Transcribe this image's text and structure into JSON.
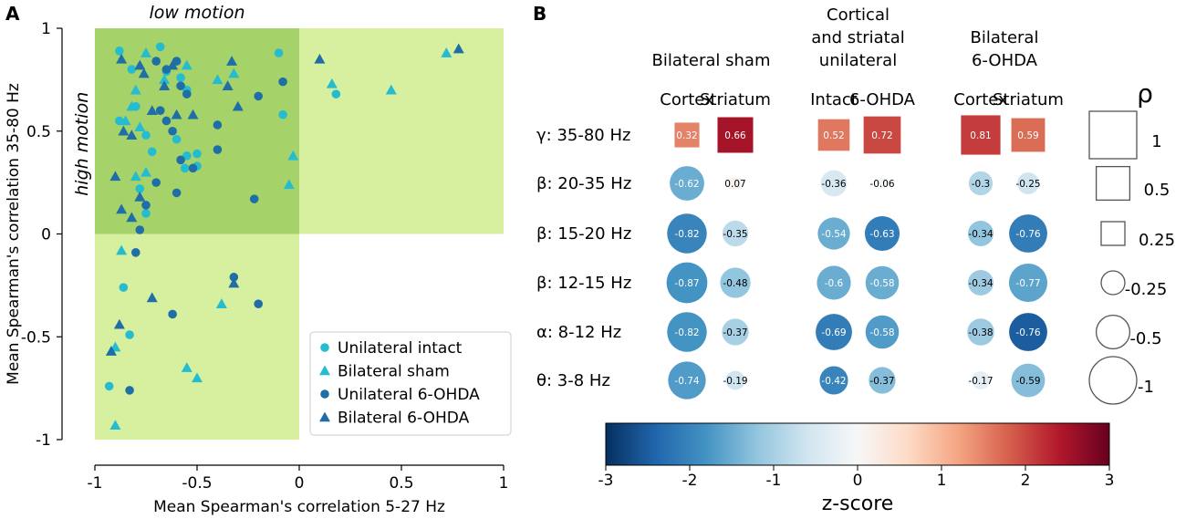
{
  "panel_a": {
    "letter": "A"
  },
  "panel_b": {
    "letter": "B"
  },
  "chart_data": [
    {
      "type": "scatter",
      "panel": "A",
      "xlabel": "Mean Spearman's correlation 5-27 Hz",
      "ylabel": "Mean Spearman's correlation 35-80 Hz",
      "xlim": [
        -1,
        1
      ],
      "ylim": [
        -1,
        1
      ],
      "xticks": [
        -1,
        -0.5,
        0,
        0.5,
        1
      ],
      "xtick_labels": [
        "-1",
        "-0.5",
        "0",
        "0.5",
        "1"
      ],
      "yticks": [
        -1,
        -0.5,
        0,
        0.5,
        1
      ],
      "ytick_labels": [
        "-1",
        "-0.5",
        "0",
        "0.5",
        "1"
      ],
      "annotations": {
        "top": "low motion",
        "left": "high motion"
      },
      "region_colors": {
        "light": "#d6f0a0",
        "dark": "#a6d26a"
      },
      "legend_position": "lower-right",
      "series": [
        {
          "name": "Unilateral intact",
          "marker": "circle",
          "color": "#26bcd0",
          "points": [
            [
              -0.88,
              0.89
            ],
            [
              -0.82,
              0.8
            ],
            [
              -0.68,
              0.91
            ],
            [
              -0.58,
              0.76
            ],
            [
              -0.55,
              0.7
            ],
            [
              -0.88,
              0.55
            ],
            [
              -0.8,
              0.62
            ],
            [
              -0.75,
              0.48
            ],
            [
              -0.72,
              0.4
            ],
            [
              -0.6,
              0.46
            ],
            [
              -0.55,
              0.38
            ],
            [
              -0.5,
              0.33
            ],
            [
              -0.78,
              0.22
            ],
            [
              -0.75,
              0.1
            ],
            [
              -0.1,
              0.88
            ],
            [
              -0.08,
              0.58
            ],
            [
              0.18,
              0.68
            ],
            [
              -0.5,
              0.39
            ],
            [
              -0.86,
              -0.26
            ],
            [
              -0.83,
              -0.49
            ],
            [
              -0.93,
              -0.74
            ],
            [
              -0.65,
              0.79
            ],
            [
              -0.56,
              0.32
            ]
          ]
        },
        {
          "name": "Bilateral sham",
          "marker": "triangle",
          "color": "#26bcd0",
          "points": [
            [
              -0.85,
              0.55
            ],
            [
              -0.8,
              0.7
            ],
            [
              -0.78,
              0.52
            ],
            [
              -0.75,
              0.88
            ],
            [
              -0.66,
              0.75
            ],
            [
              -0.55,
              0.82
            ],
            [
              -0.4,
              0.75
            ],
            [
              -0.32,
              0.78
            ],
            [
              -0.75,
              0.3
            ],
            [
              -0.8,
              0.28
            ],
            [
              -0.05,
              0.24
            ],
            [
              -0.03,
              0.38
            ],
            [
              0.16,
              0.73
            ],
            [
              0.45,
              0.7
            ],
            [
              0.72,
              0.88
            ],
            [
              -0.87,
              -0.08
            ],
            [
              -0.55,
              -0.65
            ],
            [
              -0.5,
              -0.7
            ],
            [
              -0.38,
              -0.34
            ],
            [
              -0.9,
              -0.93
            ],
            [
              -0.9,
              -0.55
            ],
            [
              -0.82,
              0.62
            ]
          ]
        },
        {
          "name": "Unilateral 6-OHDA",
          "marker": "circle",
          "color": "#1f6fa6",
          "points": [
            [
              -0.7,
              0.84
            ],
            [
              -0.65,
              0.8
            ],
            [
              -0.6,
              0.84
            ],
            [
              -0.58,
              0.72
            ],
            [
              -0.55,
              0.68
            ],
            [
              -0.65,
              0.55
            ],
            [
              -0.62,
              0.5
            ],
            [
              -0.58,
              0.36
            ],
            [
              -0.52,
              0.32
            ],
            [
              -0.68,
              0.6
            ],
            [
              -0.7,
              0.25
            ],
            [
              -0.75,
              0.14
            ],
            [
              -0.78,
              0.02
            ],
            [
              -0.6,
              0.2
            ],
            [
              -0.4,
              0.53
            ],
            [
              -0.4,
              0.41
            ],
            [
              -0.2,
              0.67
            ],
            [
              -0.08,
              0.74
            ],
            [
              -0.22,
              0.17
            ],
            [
              -0.32,
              -0.21
            ],
            [
              -0.2,
              -0.34
            ],
            [
              -0.62,
              -0.39
            ],
            [
              -0.83,
              -0.76
            ],
            [
              -0.8,
              -0.09
            ]
          ]
        },
        {
          "name": "Bilateral 6-OHDA",
          "marker": "triangle",
          "color": "#1f6fa6",
          "points": [
            [
              -0.87,
              0.85
            ],
            [
              -0.78,
              0.82
            ],
            [
              -0.76,
              0.78
            ],
            [
              -0.72,
              0.6
            ],
            [
              -0.66,
              0.72
            ],
            [
              -0.62,
              0.82
            ],
            [
              -0.6,
              0.58
            ],
            [
              -0.52,
              0.58
            ],
            [
              -0.82,
              0.48
            ],
            [
              -0.86,
              0.5
            ],
            [
              -0.87,
              0.12
            ],
            [
              -0.82,
              0.08
            ],
            [
              -0.9,
              0.28
            ],
            [
              -0.78,
              0.18
            ],
            [
              -0.35,
              0.72
            ],
            [
              -0.33,
              0.84
            ],
            [
              -0.3,
              0.62
            ],
            [
              0.1,
              0.85
            ],
            [
              0.78,
              0.9
            ],
            [
              -0.32,
              -0.24
            ],
            [
              -0.72,
              -0.31
            ],
            [
              -0.88,
              -0.44
            ],
            [
              -0.92,
              -0.57
            ]
          ]
        }
      ]
    },
    {
      "type": "heatmap",
      "panel": "B",
      "groups": [
        {
          "label_lines": [
            "Bilateral sham"
          ],
          "columns": [
            "Cortex",
            "Striatum"
          ]
        },
        {
          "label_lines": [
            "Cortical",
            "and striatal",
            "unilateral"
          ],
          "columns": [
            "Intact",
            "6-OHDA"
          ]
        },
        {
          "label_lines": [
            "Bilateral",
            "6-OHDA"
          ],
          "columns": [
            "Cortex",
            "Striatum"
          ]
        }
      ],
      "bands": [
        "γ: 35-80 Hz",
        "β: 20-35 Hz",
        "β: 15-20 Hz",
        "β: 12-15 Hz",
        "α: 8-12 Hz",
        "θ: 3-8 Hz"
      ],
      "rho_values": [
        [
          0.32,
          0.66,
          0.52,
          0.72,
          0.81,
          0.59
        ],
        [
          -0.62,
          0.07,
          -0.36,
          -0.06,
          -0.3,
          -0.25
        ],
        [
          -0.82,
          -0.35,
          -0.54,
          -0.63,
          -0.34,
          -0.76
        ],
        [
          -0.87,
          -0.48,
          -0.6,
          -0.58,
          -0.34,
          -0.77
        ],
        [
          -0.82,
          -0.37,
          -0.69,
          -0.58,
          -0.38,
          -0.76
        ],
        [
          -0.74,
          -0.19,
          -0.42,
          -0.37,
          -0.17,
          -0.59
        ]
      ],
      "zscores": [
        [
          1.5,
          2.5,
          1.6,
          2.0,
          2.1,
          1.7
        ],
        [
          -1.5,
          0.1,
          -0.5,
          -0.1,
          -0.9,
          -0.6
        ],
        [
          -2.0,
          -0.8,
          -1.5,
          -2.1,
          -1.2,
          -2.1
        ],
        [
          -1.8,
          -1.2,
          -1.5,
          -1.5,
          -1.1,
          -1.6
        ],
        [
          -1.8,
          -1.0,
          -2.1,
          -1.7,
          -1.1,
          -2.5
        ],
        [
          -1.7,
          -0.6,
          -2.0,
          -1.3,
          -0.3,
          -1.3
        ]
      ],
      "size_legend": {
        "title": "ρ",
        "square_values": [
          1,
          0.5,
          0.25
        ],
        "circle_values": [
          -0.25,
          -0.5,
          -1
        ],
        "labels": [
          "1",
          "0.5",
          "0.25",
          "-0.25",
          "-0.5",
          "-1"
        ]
      },
      "colorbar": {
        "label": "z-score",
        "range": [
          -3,
          3
        ],
        "ticks": [
          -3,
          -2,
          -1,
          0,
          1,
          2,
          3
        ],
        "tick_labels": [
          "-3",
          "-2",
          "-1",
          "0",
          "1",
          "2",
          "3"
        ],
        "colormap": "RdBu_r",
        "stops": [
          "#053061",
          "#2166ac",
          "#4393c3",
          "#92c5de",
          "#d1e5f0",
          "#f7f7f7",
          "#fddbc7",
          "#f4a582",
          "#d6604d",
          "#b2182b",
          "#67001f"
        ]
      }
    }
  ]
}
